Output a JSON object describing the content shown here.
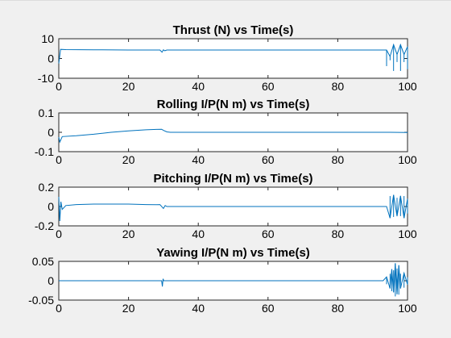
{
  "chart_data": [
    {
      "type": "line",
      "title": "Thrust (N) vs Time(s)",
      "xlim": [
        0,
        100
      ],
      "ylim": [
        -10,
        10
      ],
      "xticks": [
        "0",
        "20",
        "40",
        "60",
        "80",
        "100"
      ],
      "yticks": [
        "10",
        "0",
        "-10"
      ],
      "grid": false,
      "series": [
        {
          "color": "#0072bd",
          "x": [
            0,
            0.5,
            2,
            10,
            20,
            29,
            29.6,
            30,
            30.4,
            31,
            40,
            60,
            80,
            94,
            95,
            96,
            97,
            98,
            99,
            100
          ],
          "y": [
            -2.5,
            4.6,
            4.5,
            4.4,
            4.3,
            4.3,
            3.2,
            4.4,
            3.9,
            4.3,
            4.3,
            4.3,
            4.3,
            4.3,
            1,
            7,
            2,
            7,
            2,
            6
          ]
        }
      ]
    },
    {
      "type": "line",
      "title": "Rolling I/P(N m) vs Time(s)",
      "xlim": [
        0,
        100
      ],
      "ylim": [
        -0.1,
        0.1
      ],
      "xticks": [
        "0",
        "20",
        "40",
        "60",
        "80",
        "100"
      ],
      "yticks": [
        "0.1",
        "0",
        "-0.1"
      ],
      "grid": false,
      "series": [
        {
          "color": "#0072bd",
          "x": [
            0,
            0.3,
            1,
            5,
            10,
            15,
            20,
            25,
            28,
            29.5,
            30,
            31,
            32,
            40,
            60,
            80,
            95,
            100
          ],
          "y": [
            -0.025,
            -0.05,
            -0.022,
            -0.018,
            -0.01,
            0,
            0.007,
            0.013,
            0.015,
            0.016,
            0.01,
            0.002,
            0,
            0,
            0,
            0,
            0,
            -0.001
          ]
        }
      ]
    },
    {
      "type": "line",
      "title": "Pitching I/P(N m) vs Time(s)",
      "xlim": [
        0,
        100
      ],
      "ylim": [
        -0.2,
        0.2
      ],
      "xticks": [
        "0",
        "20",
        "40",
        "60",
        "80",
        "100"
      ],
      "yticks": [
        "0.2",
        "0",
        "-0.2"
      ],
      "grid": false,
      "series": [
        {
          "color": "#0072bd",
          "x": [
            0,
            0.3,
            0.6,
            1,
            2,
            5,
            10,
            20,
            25,
            28,
            29,
            30,
            30.5,
            31,
            40,
            60,
            80,
            94,
            95,
            96,
            97,
            98,
            99,
            100
          ],
          "y": [
            0.1,
            -0.15,
            0.05,
            -0.03,
            0.01,
            0.02,
            0.025,
            0.025,
            0.02,
            0.018,
            0.02,
            -0.02,
            0.01,
            0,
            0,
            0,
            0,
            0,
            -0.12,
            0.12,
            -0.1,
            0.11,
            -0.12,
            0.08
          ]
        }
      ]
    },
    {
      "type": "line",
      "title": "Yawing I/P(N m) vs Time(s)",
      "xlim": [
        0,
        100
      ],
      "ylim": [
        -0.05,
        0.05
      ],
      "xticks": [
        "0",
        "20",
        "40",
        "60",
        "80",
        "100"
      ],
      "yticks": [
        "0.05",
        "0",
        "-0.05"
      ],
      "grid": false,
      "series": [
        {
          "color": "#0072bd",
          "x": [
            0,
            29.5,
            29.7,
            29.9,
            30.1,
            31,
            60,
            93,
            94,
            95,
            95.5,
            96,
            96.5,
            97,
            97.5,
            98,
            99,
            100
          ],
          "y": [
            0,
            0,
            -0.015,
            0.005,
            0,
            0,
            0,
            0,
            0.01,
            -0.02,
            0.03,
            -0.03,
            0.045,
            -0.035,
            0.04,
            -0.02,
            0.02,
            -0.01
          ]
        }
      ]
    }
  ]
}
